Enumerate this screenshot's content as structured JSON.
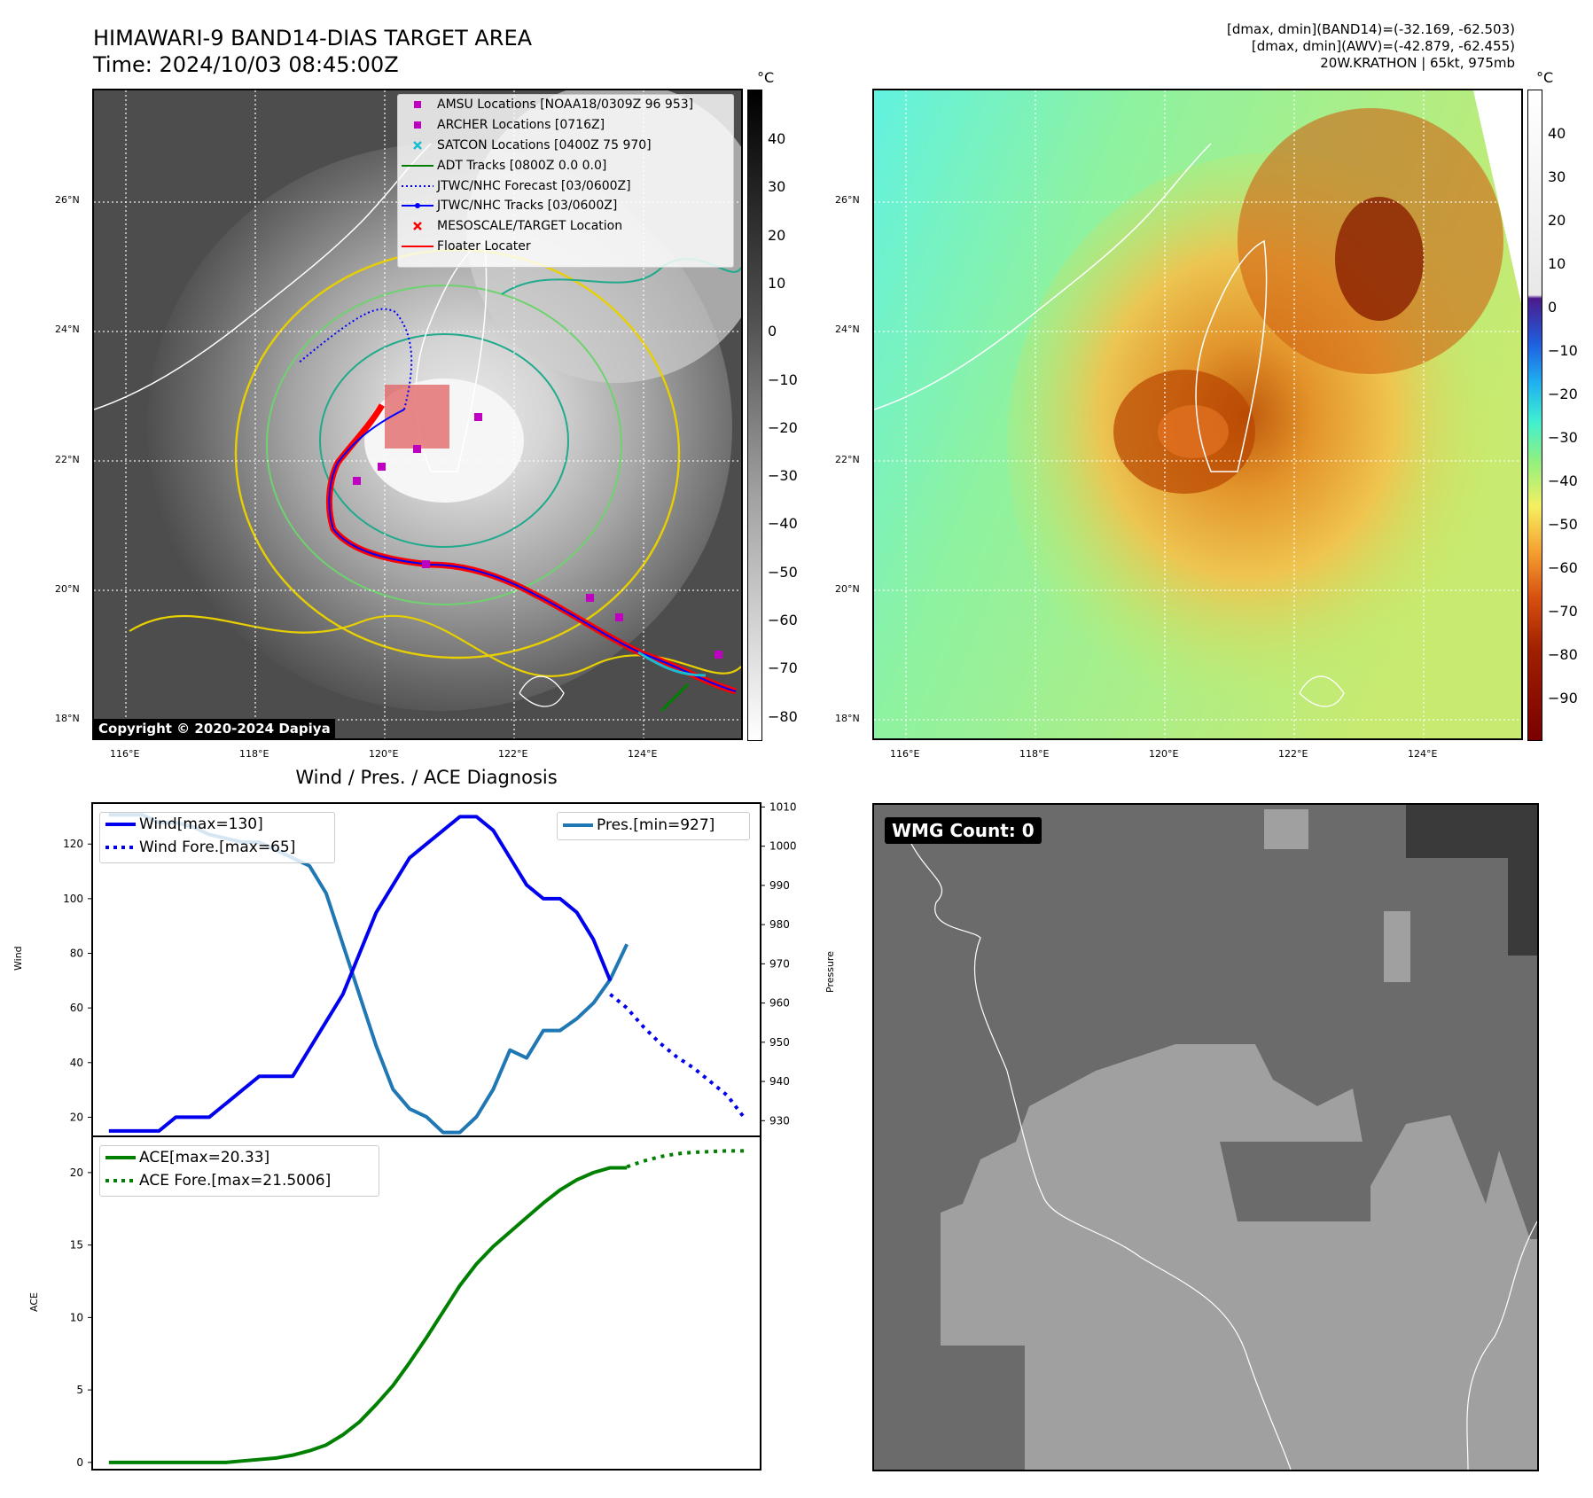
{
  "header": {
    "title_line1": "HIMAWARI-9 BAND14-DIAS TARGET AREA",
    "title_line2": "Time: 2024/10/03 08:45:00Z",
    "info_line1": "[dmax, dmin](BAND14)=(-32.169, -62.503)",
    "info_line2": "[dmax, dmin](AWV)=(-42.879, -62.455)",
    "info_line3": "20W.KRATHON | 65kt, 975mb"
  },
  "map": {
    "lat_labels": [
      "26°N",
      "24°N",
      "22°N",
      "20°N",
      "18°N"
    ],
    "lon_labels": [
      "116°E",
      "118°E",
      "120°E",
      "122°E",
      "124°E"
    ],
    "copyright": "Copyright © 2020-2024 Dapiya",
    "legend": [
      {
        "label": "AMSU Locations [NOAA18/0309Z 96 953]",
        "key": "square",
        "color": "#c000c0"
      },
      {
        "label": "ARCHER Locations [0716Z]",
        "key": "square",
        "color": "#c000c0"
      },
      {
        "label": "SATCON Locations [0400Z 75 970]",
        "key": "x",
        "color": "#17becf"
      },
      {
        "label": "ADT Tracks [0800Z 0.0 0.0]",
        "key": "line",
        "color": "#008000"
      },
      {
        "label": "JTWC/NHC Forecast [03/0600Z]",
        "key": "dotted",
        "color": "#0000ff"
      },
      {
        "label": "JTWC/NHC Tracks [03/0600Z]",
        "key": "linedot",
        "color": "#0000ff"
      },
      {
        "label": "MESOSCALE/TARGET Location",
        "key": "x",
        "color": "#ff0000"
      },
      {
        "label": "Floater Locater",
        "key": "line",
        "color": "#ff0000"
      }
    ],
    "colorbar_unit": "°C",
    "colorbar_left_ticks": [
      "40",
      "30",
      "20",
      "10",
      "0",
      "−10",
      "−20",
      "−30",
      "−40",
      "−50",
      "−60",
      "−70",
      "−80"
    ],
    "colorbar_right_ticks": [
      "40",
      "30",
      "20",
      "10",
      "0",
      "−10",
      "−20",
      "−30",
      "−40",
      "−50",
      "−60",
      "−70",
      "−80",
      "−90"
    ]
  },
  "diagnosis": {
    "title": "Wind / Pres. / ACE Diagnosis",
    "wind_ylabel": "Wind",
    "pres_ylabel": "Pressure",
    "ace_ylabel": "ACE",
    "wmg_label": "WMG Count: 0"
  },
  "chart_data": [
    {
      "type": "line",
      "title": "Wind / Pres. / ACE Diagnosis",
      "ylabel": "Wind",
      "ylim": [
        13,
        135
      ],
      "yticks": [
        20,
        40,
        60,
        80,
        100,
        120
      ],
      "xlim": [
        -1,
        39
      ],
      "series": [
        {
          "name": "Wind[max=130]",
          "style": "solid",
          "color": "#0000ee",
          "x": [
            0,
            1,
            2,
            3,
            4,
            5,
            6,
            7,
            8,
            9,
            10,
            11,
            12,
            13,
            14,
            15,
            16,
            17,
            18,
            19,
            20,
            21,
            22,
            23,
            24,
            25,
            26,
            27,
            28,
            29,
            30
          ],
          "values": [
            15,
            15,
            15,
            15,
            20,
            20,
            20,
            25,
            30,
            35,
            35,
            35,
            45,
            55,
            65,
            80,
            95,
            105,
            115,
            120,
            125,
            130,
            130,
            125,
            115,
            105,
            100,
            100,
            95,
            85,
            70
          ]
        },
        {
          "name": "Wind Fore.[max=65]",
          "style": "dotted",
          "color": "#0000ee",
          "x": [
            30,
            31,
            32,
            33,
            34,
            35,
            36,
            37,
            38
          ],
          "values": [
            65,
            60,
            53,
            47,
            42,
            38,
            33,
            28,
            20
          ]
        }
      ]
    },
    {
      "type": "line",
      "ylabel": "Pressure",
      "ylim": [
        926,
        1011
      ],
      "yticks": [
        930,
        940,
        950,
        960,
        970,
        980,
        990,
        1000,
        1010
      ],
      "series": [
        {
          "name": "Pres.[min=927]",
          "style": "solid",
          "color": "#1f77b4",
          "x": [
            0,
            1,
            2,
            3,
            4,
            5,
            6,
            7,
            8,
            9,
            10,
            11,
            12,
            13,
            14,
            15,
            16,
            17,
            18,
            19,
            20,
            21,
            22,
            23,
            24,
            25,
            26,
            27,
            28,
            29,
            30,
            31
          ],
          "values": [
            1008,
            1008,
            1008,
            1006,
            1006,
            1005,
            1003,
            1002,
            1001,
            1001,
            999,
            997,
            995,
            988,
            975,
            962,
            949,
            938,
            933,
            931,
            927,
            927,
            931,
            938,
            948,
            946,
            953,
            953,
            956,
            960,
            966,
            975
          ]
        }
      ]
    },
    {
      "type": "line",
      "ylabel": "ACE",
      "ylim": [
        -0.5,
        22.5
      ],
      "yticks": [
        0,
        5,
        10,
        15,
        20
      ],
      "series": [
        {
          "name": "ACE[max=20.33]",
          "style": "solid",
          "color": "#008000",
          "x": [
            0,
            1,
            2,
            3,
            4,
            5,
            6,
            7,
            8,
            9,
            10,
            11,
            12,
            13,
            14,
            15,
            16,
            17,
            18,
            19,
            20,
            21,
            22,
            23,
            24,
            25,
            26,
            27,
            28,
            29,
            30,
            31
          ],
          "values": [
            0,
            0,
            0,
            0,
            0,
            0,
            0,
            0,
            0.1,
            0.2,
            0.3,
            0.5,
            0.8,
            1.2,
            1.9,
            2.8,
            4.0,
            5.3,
            6.9,
            8.6,
            10.4,
            12.2,
            13.7,
            14.9,
            15.9,
            16.9,
            17.9,
            18.8,
            19.5,
            20.0,
            20.33,
            20.33
          ]
        },
        {
          "name": "ACE Fore.[max=21.5006]",
          "style": "dotted",
          "color": "#008000",
          "x": [
            31,
            32,
            33,
            34,
            35,
            36,
            37,
            38
          ],
          "values": [
            20.4,
            20.8,
            21.1,
            21.3,
            21.4,
            21.45,
            21.5,
            21.5006
          ]
        }
      ]
    }
  ]
}
